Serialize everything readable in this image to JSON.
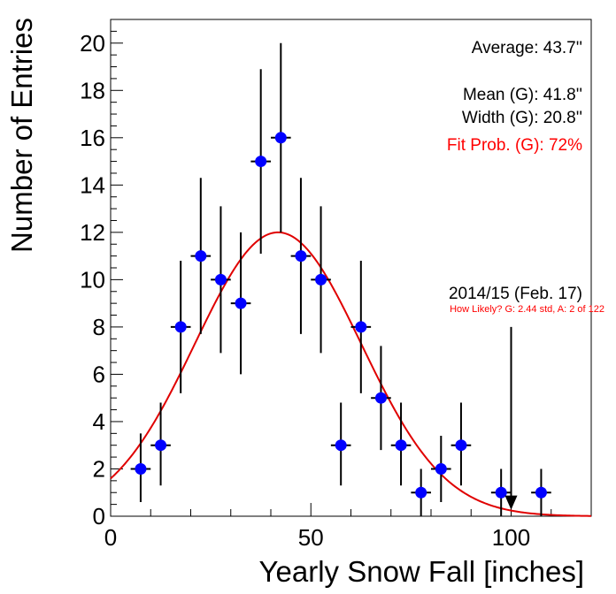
{
  "chart_data": {
    "type": "scatter",
    "xlabel": "Yearly Snow Fall [inches]",
    "ylabel": "Number of Entries",
    "xlim": [
      0,
      120
    ],
    "ylim": [
      0,
      21
    ],
    "x_ticks": [
      0,
      50,
      100
    ],
    "y_ticks": [
      0,
      2,
      4,
      6,
      8,
      10,
      12,
      14,
      16,
      18,
      20
    ],
    "bin_width": 5,
    "series": [
      {
        "kind": "histogram-points",
        "color": "#0000ff",
        "x": [
          7.5,
          12.5,
          17.5,
          22.5,
          27.5,
          32.5,
          37.5,
          42.5,
          47.5,
          52.5,
          57.5,
          62.5,
          67.5,
          72.5,
          77.5,
          82.5,
          87.5,
          97.5,
          107.5
        ],
        "values": [
          2,
          3,
          8,
          11,
          10,
          9,
          15,
          16,
          11,
          10,
          3,
          8,
          5,
          3,
          1,
          2,
          3,
          1,
          1
        ],
        "err_up": [
          1.5,
          1.8,
          2.8,
          3.3,
          3.1,
          3.0,
          3.9,
          4.0,
          3.3,
          3.1,
          1.8,
          2.8,
          2.2,
          1.8,
          1.0,
          1.4,
          1.8,
          1.0,
          1.0
        ],
        "err_down": [
          1.4,
          1.7,
          2.8,
          3.3,
          3.1,
          3.0,
          3.9,
          4.0,
          3.3,
          3.1,
          1.7,
          2.8,
          2.2,
          1.7,
          1.0,
          1.4,
          1.7,
          1.0,
          1.0
        ]
      },
      {
        "kind": "gaussian-fit",
        "color": "#e00000",
        "mean": 41.8,
        "width": 20.8,
        "peak": 12.0,
        "x_range": [
          0,
          120
        ]
      }
    ],
    "marker": {
      "x": 100,
      "y": 0.35,
      "line_top": 8,
      "color": "#000000"
    },
    "annotations": {
      "average": "Average: 43.7''",
      "mean": "Mean (G): 41.8''",
      "width": "Width (G): 20.8''",
      "fit_prob": "Fit Prob. (G): 72%",
      "season": "2014/15 (Feb. 17)",
      "likelihood": "How Likely?  G: 2.44 std, A: 2 of 122"
    },
    "colors": {
      "points": "#0000ff",
      "fit": "#e00000",
      "fit_prob_text": "#ff0000",
      "axes": "#000000"
    }
  }
}
